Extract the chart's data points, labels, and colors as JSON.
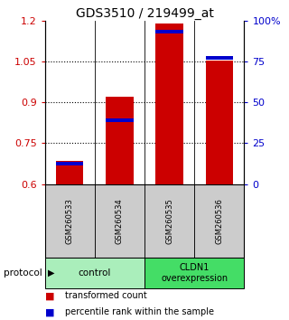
{
  "title": "GDS3510 / 219499_at",
  "samples": [
    "GSM260533",
    "GSM260534",
    "GSM260535",
    "GSM260536"
  ],
  "red_values": [
    0.685,
    0.92,
    1.19,
    1.055
  ],
  "blue_values": [
    0.675,
    0.835,
    1.16,
    1.065
  ],
  "ylim_left": [
    0.6,
    1.2
  ],
  "ylim_right": [
    0,
    100
  ],
  "yticks_left": [
    0.6,
    0.75,
    0.9,
    1.05,
    1.2
  ],
  "yticks_right": [
    0,
    25,
    50,
    75,
    100
  ],
  "ytick_labels_left": [
    "0.6",
    "0.75",
    "0.9",
    "1.05",
    "1.2"
  ],
  "ytick_labels_right": [
    "0",
    "25",
    "50",
    "75",
    "100%"
  ],
  "hlines": [
    0.75,
    0.9,
    1.05
  ],
  "bar_width": 0.55,
  "bar_bottom": 0.6,
  "red_color": "#cc0000",
  "blue_color": "#0000cc",
  "gray_color": "#cccccc",
  "control_color": "#aaeebb",
  "cldn1_color": "#44dd66",
  "title_fontsize": 10,
  "tick_fontsize": 8,
  "sample_fontsize": 6,
  "group_fontsize": 7.5,
  "legend_fontsize": 7
}
